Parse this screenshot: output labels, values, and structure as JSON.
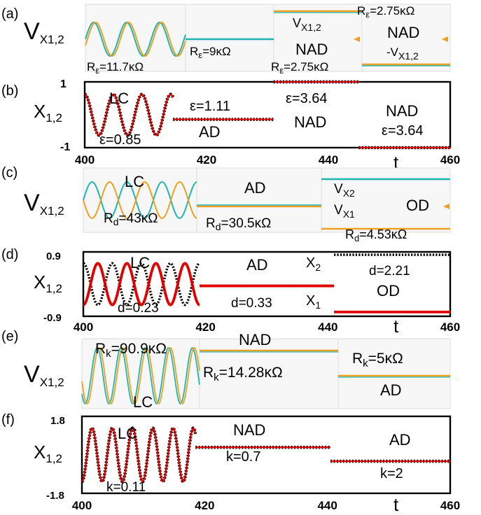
{
  "figure": {
    "panel_letters": [
      "(a)",
      "(b)",
      "(c)",
      "(d)",
      "(e)",
      "(f)"
    ],
    "colors": {
      "teal": "#22b5b0",
      "orange": "#f0a020",
      "red": "#e00000",
      "black": "#000000",
      "scope_bg": "#f7f7f7",
      "scope_grid": "#d8d8d8"
    }
  },
  "chart_data": [
    {
      "panel": "(a)",
      "type": "line",
      "ylabel_main": "V",
      "ylabel_sub": "X1,2",
      "annotations": [
        "R",
        "ε",
        "=11.7κΩ",
        "R",
        "ε",
        "=9κΩ",
        "V",
        "X1,2",
        "NAD",
        "R",
        "ε",
        "=2.75κΩ",
        "R",
        "ε",
        "=2.75κΩ",
        "NAD",
        "-V",
        "X1,2"
      ],
      "series": [
        {
          "values": []
        }
      ]
    },
    {
      "panel": "(b)",
      "type": "line",
      "ylabel_main": "X",
      "ylabel_sub": "1,2",
      "yticks": [
        "1",
        "-1"
      ],
      "xticks": [
        "400",
        "420",
        "440",
        "460"
      ],
      "xlabel": "t",
      "xlim": [
        400,
        460
      ],
      "ylim": [
        -1,
        1
      ],
      "annotations": [
        "LC",
        "ε=0.85",
        "ε=1.11",
        "AD",
        "ε=3.64",
        "NAD",
        "NAD",
        "ε=3.64"
      ],
      "segments": [
        {
          "regime": "LC",
          "x": [
            400,
            414.5
          ],
          "period": 4.7,
          "amplitude": 0.62
        },
        {
          "regime": "AD",
          "x": [
            414.5,
            431
          ],
          "level": -0.14
        },
        {
          "regime": "NAD",
          "x": [
            431,
            445
          ],
          "level": 1.0
        },
        {
          "regime": "NAD",
          "x": [
            445,
            460
          ],
          "level": -1.0
        }
      ]
    },
    {
      "panel": "(c)",
      "type": "line",
      "ylabel_main": "V",
      "ylabel_sub": "X1,2",
      "annotations": [
        "LC",
        "R",
        "d",
        "=43κΩ",
        "AD",
        "R",
        "d",
        "=30.5κΩ",
        "V",
        "X2",
        "V",
        "X1",
        "OD",
        "R",
        "d",
        "=4.53κΩ"
      ],
      "series": [
        {
          "values": []
        }
      ]
    },
    {
      "panel": "(d)",
      "type": "line",
      "ylabel_main": "X",
      "ylabel_sub": "1,2",
      "yticks": [
        "0.9",
        "-0.9"
      ],
      "xticks": [
        "400",
        "420",
        "440",
        "460"
      ],
      "xlabel": "t",
      "xlim": [
        400,
        460
      ],
      "ylim": [
        -0.9,
        0.9
      ],
      "annotations": [
        "LC",
        "d=0.23",
        "AD",
        "d=0.33",
        "X",
        "2",
        "X",
        "1",
        "d=2.21",
        "OD"
      ],
      "segments": [
        {
          "regime": "LC",
          "x": [
            400,
            419
          ],
          "period": 4.75,
          "amplitude": 0.58
        },
        {
          "regime": "AD",
          "x": [
            419,
            441
          ],
          "level": -0.05
        },
        {
          "regime": "OD",
          "x": [
            441,
            460
          ],
          "level_x1": -0.78,
          "level_x2": 0.82
        }
      ]
    },
    {
      "panel": "(e)",
      "type": "line",
      "ylabel_main": "V",
      "ylabel_sub": "X1,2",
      "annotations": [
        "R",
        "k",
        "=90.9κΩ",
        "LC",
        "NAD",
        "R",
        "k",
        "=14.28κΩ",
        "R",
        "k",
        "=5κΩ",
        "AD"
      ],
      "series": [
        {
          "values": []
        }
      ]
    },
    {
      "panel": "(f)",
      "type": "line",
      "ylabel_main": "X",
      "ylabel_sub": "1,2",
      "yticks": [
        "1.8",
        "-1.8"
      ],
      "xticks": [
        "400",
        "420",
        "440",
        "460"
      ],
      "xlabel": "t",
      "xlim": [
        400,
        460
      ],
      "ylim": [
        -1.8,
        1.8
      ],
      "annotations": [
        "LC",
        "k=0.11",
        "NAD",
        "k=0.7",
        "AD",
        "k=2"
      ],
      "segments": [
        {
          "regime": "LC",
          "x": [
            400,
            418.5
          ],
          "period": 3.3,
          "amplitude": 1.25
        },
        {
          "regime": "NAD",
          "x": [
            418.5,
            440.5
          ],
          "level": 0.35
        },
        {
          "regime": "AD",
          "x": [
            440.5,
            460
          ],
          "level": -0.3
        }
      ]
    }
  ]
}
